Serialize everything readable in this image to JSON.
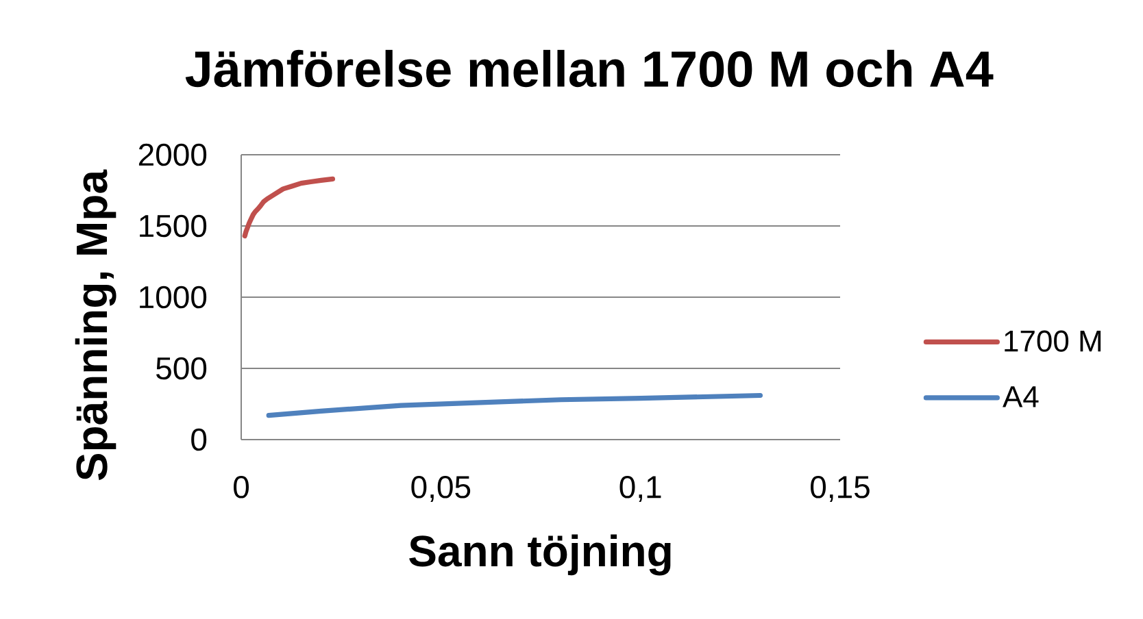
{
  "chart_data": {
    "type": "line",
    "title": "Jämförelse mellan 1700 M och A4",
    "xlabel": "Sann töjning",
    "ylabel": "Spänning, Mpa",
    "series": [
      {
        "name": "1700 M",
        "color": "#c0504d",
        "x": [
          0.0009,
          0.0012,
          0.0016,
          0.002,
          0.0025,
          0.003,
          0.0035,
          0.0042,
          0.0048,
          0.0056,
          0.0065,
          0.0082,
          0.0105,
          0.0128,
          0.015,
          0.0174,
          0.02,
          0.0229
        ],
        "values": [
          1430,
          1460,
          1490,
          1520,
          1550,
          1580,
          1600,
          1620,
          1640,
          1670,
          1690,
          1720,
          1760,
          1780,
          1800,
          1810,
          1820,
          1830
        ]
      },
      {
        "name": "A4",
        "color": "#4f81bd",
        "x": [
          0.0069,
          0.02,
          0.04,
          0.06,
          0.08,
          0.1,
          0.13
        ],
        "values": [
          170,
          200,
          240,
          260,
          280,
          290,
          310
        ]
      }
    ],
    "xlim": [
      0,
      0.15
    ],
    "ylim": [
      0,
      2000
    ],
    "xticks": [
      0,
      {
        "value": 0.05,
        "label": "0,05"
      },
      {
        "value": 0.1,
        "label": "0,1"
      },
      {
        "value": 0.15,
        "label": "0,15"
      }
    ],
    "yticks": [
      0,
      500,
      1000,
      1500,
      2000
    ],
    "grid": "y",
    "legend": "right",
    "marker": "none",
    "line_style": "solid"
  }
}
